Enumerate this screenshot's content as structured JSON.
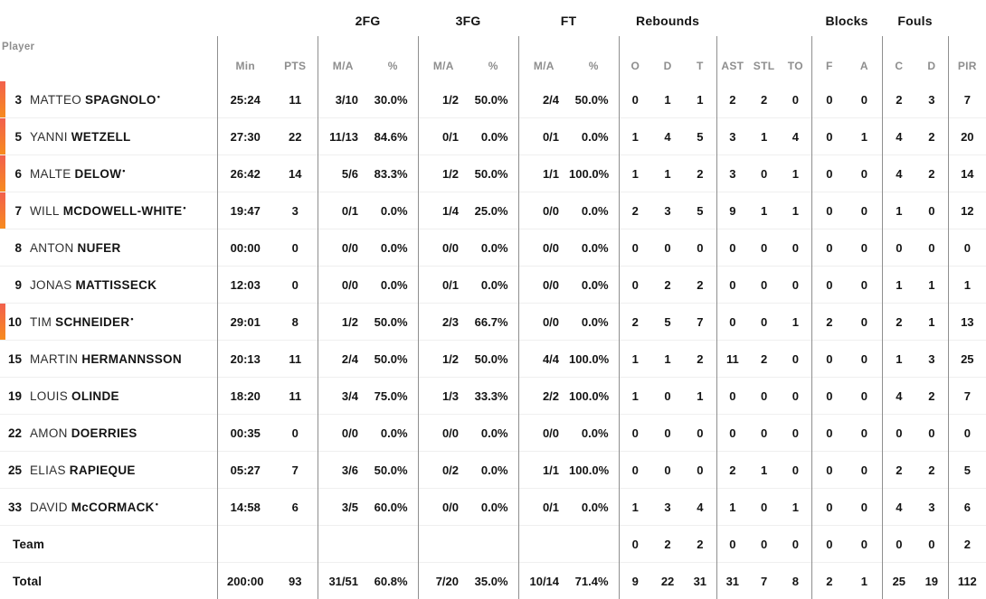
{
  "colors": {
    "accent_gradient_top": "#f2604d",
    "accent_gradient_bottom": "#f78b1e",
    "column_divider": "#8f8f8f",
    "row_divider": "#efefef",
    "header_text": "#8e8e8e",
    "text": "#141414"
  },
  "header": {
    "player_label": "Player",
    "groups": [
      {
        "label": "",
        "span": 3
      },
      {
        "label": "2FG",
        "span": 2
      },
      {
        "label": "3FG",
        "span": 2
      },
      {
        "label": "FT",
        "span": 2
      },
      {
        "label": "Rebounds",
        "span": 3
      },
      {
        "label": "",
        "span": 3
      },
      {
        "label": "Blocks",
        "span": 2
      },
      {
        "label": "Fouls",
        "span": 2
      },
      {
        "label": "",
        "span": 1
      }
    ],
    "columns": [
      "Min",
      "PTS",
      "M/A",
      "%",
      "M/A",
      "%",
      "M/A",
      "%",
      "O",
      "D",
      "T",
      "AST",
      "STL",
      "TO",
      "F",
      "A",
      "C",
      "D",
      "PIR"
    ],
    "starter_mark": "•"
  },
  "rows": [
    {
      "number": "3",
      "first_name": "MATTEO",
      "last_name": "SPAGNOLO",
      "starter": true,
      "on_court": true,
      "stats": [
        "25:24",
        "11",
        "3/10",
        "30.0%",
        "1/2",
        "50.0%",
        "2/4",
        "50.0%",
        "0",
        "1",
        "1",
        "2",
        "2",
        "0",
        "0",
        "0",
        "2",
        "3",
        "7"
      ]
    },
    {
      "number": "5",
      "first_name": "YANNI",
      "last_name": "WETZELL",
      "starter": false,
      "on_court": true,
      "stats": [
        "27:30",
        "22",
        "11/13",
        "84.6%",
        "0/1",
        "0.0%",
        "0/1",
        "0.0%",
        "1",
        "4",
        "5",
        "3",
        "1",
        "4",
        "0",
        "1",
        "4",
        "2",
        "20"
      ]
    },
    {
      "number": "6",
      "first_name": "MALTE",
      "last_name": "DELOW",
      "starter": true,
      "on_court": true,
      "stats": [
        "26:42",
        "14",
        "5/6",
        "83.3%",
        "1/2",
        "50.0%",
        "1/1",
        "100.0%",
        "1",
        "1",
        "2",
        "3",
        "0",
        "1",
        "0",
        "0",
        "4",
        "2",
        "14"
      ]
    },
    {
      "number": "7",
      "first_name": "WILL",
      "last_name": "MCDOWELL-WHITE",
      "starter": true,
      "on_court": true,
      "stats": [
        "19:47",
        "3",
        "0/1",
        "0.0%",
        "1/4",
        "25.0%",
        "0/0",
        "0.0%",
        "2",
        "3",
        "5",
        "9",
        "1",
        "1",
        "0",
        "0",
        "1",
        "0",
        "12"
      ]
    },
    {
      "number": "8",
      "first_name": "ANTON",
      "last_name": "NUFER",
      "starter": false,
      "on_court": false,
      "stats": [
        "00:00",
        "0",
        "0/0",
        "0.0%",
        "0/0",
        "0.0%",
        "0/0",
        "0.0%",
        "0",
        "0",
        "0",
        "0",
        "0",
        "0",
        "0",
        "0",
        "0",
        "0",
        "0"
      ]
    },
    {
      "number": "9",
      "first_name": "JONAS",
      "last_name": "MATTISSECK",
      "starter": false,
      "on_court": false,
      "stats": [
        "12:03",
        "0",
        "0/0",
        "0.0%",
        "0/1",
        "0.0%",
        "0/0",
        "0.0%",
        "0",
        "2",
        "2",
        "0",
        "0",
        "0",
        "0",
        "0",
        "1",
        "1",
        "1"
      ]
    },
    {
      "number": "10",
      "first_name": "TIM",
      "last_name": "SCHNEIDER",
      "starter": true,
      "on_court": true,
      "stats": [
        "29:01",
        "8",
        "1/2",
        "50.0%",
        "2/3",
        "66.7%",
        "0/0",
        "0.0%",
        "2",
        "5",
        "7",
        "0",
        "0",
        "1",
        "2",
        "0",
        "2",
        "1",
        "13"
      ]
    },
    {
      "number": "15",
      "first_name": "MARTIN",
      "last_name": "HERMANNSSON",
      "starter": false,
      "on_court": false,
      "stats": [
        "20:13",
        "11",
        "2/4",
        "50.0%",
        "1/2",
        "50.0%",
        "4/4",
        "100.0%",
        "1",
        "1",
        "2",
        "11",
        "2",
        "0",
        "0",
        "0",
        "1",
        "3",
        "25"
      ]
    },
    {
      "number": "19",
      "first_name": "LOUIS",
      "last_name": "OLINDE",
      "starter": false,
      "on_court": false,
      "stats": [
        "18:20",
        "11",
        "3/4",
        "75.0%",
        "1/3",
        "33.3%",
        "2/2",
        "100.0%",
        "1",
        "0",
        "1",
        "0",
        "0",
        "0",
        "0",
        "0",
        "4",
        "2",
        "7"
      ]
    },
    {
      "number": "22",
      "first_name": "AMON",
      "last_name": "DOERRIES",
      "starter": false,
      "on_court": false,
      "stats": [
        "00:35",
        "0",
        "0/0",
        "0.0%",
        "0/0",
        "0.0%",
        "0/0",
        "0.0%",
        "0",
        "0",
        "0",
        "0",
        "0",
        "0",
        "0",
        "0",
        "0",
        "0",
        "0"
      ]
    },
    {
      "number": "25",
      "first_name": "ELIAS",
      "last_name": "RAPIEQUE",
      "starter": false,
      "on_court": false,
      "stats": [
        "05:27",
        "7",
        "3/6",
        "50.0%",
        "0/2",
        "0.0%",
        "1/1",
        "100.0%",
        "0",
        "0",
        "0",
        "2",
        "1",
        "0",
        "0",
        "0",
        "2",
        "2",
        "5"
      ]
    },
    {
      "number": "33",
      "first_name": "DAVID",
      "last_name": "McCORMACK",
      "starter": true,
      "on_court": false,
      "stats": [
        "14:58",
        "6",
        "3/5",
        "60.0%",
        "0/0",
        "0.0%",
        "0/1",
        "0.0%",
        "1",
        "3",
        "4",
        "1",
        "0",
        "1",
        "0",
        "0",
        "4",
        "3",
        "6"
      ]
    }
  ],
  "summary_rows": [
    {
      "label": "Team",
      "stats": [
        "",
        "",
        "",
        "",
        "",
        "",
        "",
        "",
        "0",
        "2",
        "2",
        "0",
        "0",
        "0",
        "0",
        "0",
        "0",
        "0",
        "2"
      ]
    },
    {
      "label": "Total",
      "stats": [
        "200:00",
        "93",
        "31/51",
        "60.8%",
        "7/20",
        "35.0%",
        "10/14",
        "71.4%",
        "9",
        "22",
        "31",
        "31",
        "7",
        "8",
        "2",
        "1",
        "25",
        "19",
        "112"
      ]
    }
  ]
}
